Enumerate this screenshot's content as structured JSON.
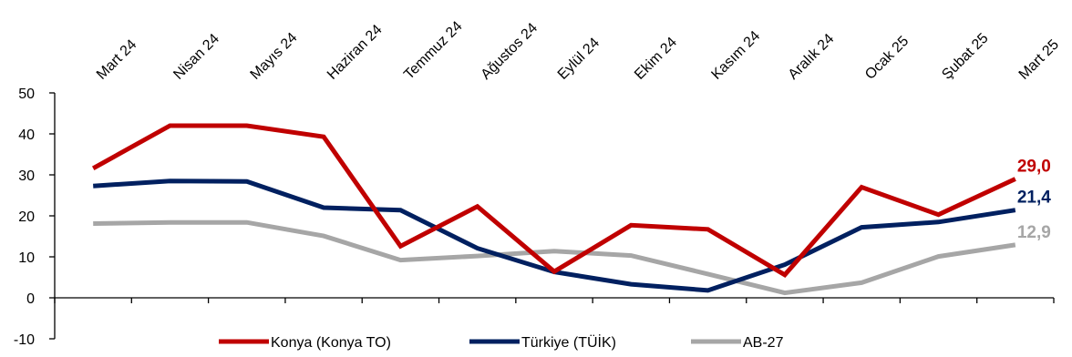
{
  "chart_data": {
    "type": "line",
    "categories": [
      "Mart 24",
      "Nisan 24",
      "Mayıs 24",
      "Haziran 24",
      "Temmuz 24",
      "Ağustos 24",
      "Eylül 24",
      "Ekim 24",
      "Kasım 24",
      "Aralık 24",
      "Ocak 25",
      "Şubat 25",
      "Mart 25"
    ],
    "ylim": [
      -10,
      50
    ],
    "yticks": [
      "50",
      "40",
      "30",
      "20",
      "10",
      "0",
      "-10"
    ],
    "ytick_values": [
      50,
      40,
      30,
      20,
      10,
      0,
      -10
    ],
    "x_axis_position": "top",
    "legend_position": "bottom",
    "series": [
      {
        "name": "Konya (Konya TO)",
        "color": "#c00000",
        "values": [
          31.6,
          42.0,
          42.0,
          39.3,
          12.6,
          22.3,
          6.4,
          17.7,
          16.7,
          5.6,
          27.0,
          20.3,
          29.0
        ],
        "end_label": "29,0"
      },
      {
        "name": "Türkiye (TÜİK)",
        "color": "#002060",
        "values": [
          27.3,
          28.5,
          28.4,
          22.0,
          21.4,
          12.1,
          6.3,
          3.3,
          1.8,
          8.1,
          17.2,
          18.5,
          21.4
        ],
        "end_label": "21,4"
      },
      {
        "name": "AB-27",
        "color": "#a6a6a6",
        "values": [
          18.1,
          18.4,
          18.4,
          15.1,
          9.2,
          10.2,
          11.4,
          10.3,
          5.8,
          1.2,
          3.7,
          10.1,
          12.9
        ],
        "end_label": "12,9"
      }
    ]
  }
}
